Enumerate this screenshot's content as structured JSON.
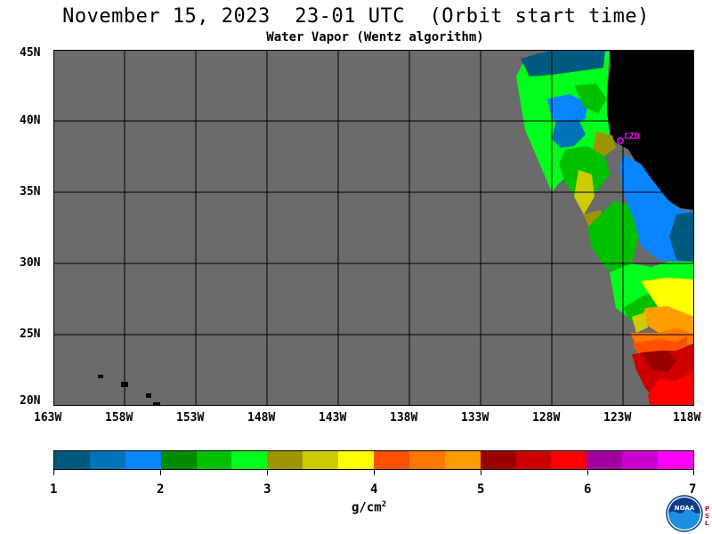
{
  "header": {
    "title": "November 15, 2023  23-01 UTC  (Orbit start time)",
    "subtitle": "Water Vapor (Wentz algorithm)"
  },
  "map": {
    "latitude_labels": [
      "45N",
      "40N",
      "35N",
      "30N",
      "25N",
      "20N"
    ],
    "longitude_labels": [
      "163W",
      "158W",
      "153W",
      "148W",
      "143W",
      "138W",
      "133W",
      "128W",
      "123W",
      "118W"
    ],
    "station_label": "CZD",
    "colors": {
      "no_data": "#6b6b6b",
      "land": "#000000",
      "station": "#ff00ff",
      "grid": "#000000"
    }
  },
  "colorbar": {
    "tick_labels": [
      "1",
      "2",
      "3",
      "4",
      "5",
      "6",
      "7"
    ],
    "units_base": "g/cm",
    "units_exp": "2",
    "colors": [
      "#005a7f",
      "#0073b8",
      "#0a85ff",
      "#008c00",
      "#00c000",
      "#00ff1c",
      "#9e9600",
      "#cccc00",
      "#ffff00",
      "#ff5000",
      "#ff7800",
      "#ff9e00",
      "#9b0000",
      "#cc0000",
      "#ff0000",
      "#a000a0",
      "#cc00cc",
      "#ff00ff"
    ]
  },
  "logo": {
    "text": "NOAA",
    "side_text": "PSL"
  }
}
